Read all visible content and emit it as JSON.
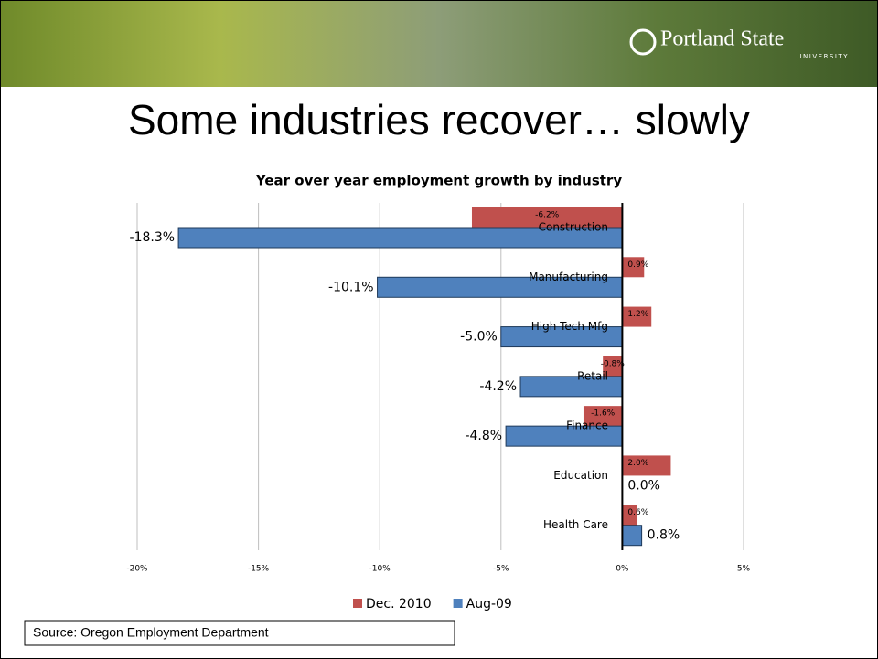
{
  "logo": {
    "name": "Portland State",
    "sub": "UNIVERSITY"
  },
  "slide_title": "Some industries recover… slowly",
  "source": "Source: Oregon Employment Department",
  "chart_data": {
    "type": "hbar",
    "title": "Year over year employment growth by industry",
    "categories": [
      "Construction",
      "Manufacturing",
      "High Tech Mfg",
      "Retail",
      "Finance",
      "Education",
      "Health Care"
    ],
    "series": [
      {
        "name": "Dec. 2010",
        "color": "#c0504d",
        "values": [
          -6.2,
          0.9,
          1.2,
          -0.8,
          -1.6,
          2.0,
          0.6
        ],
        "value_labels": [
          "-6.2%",
          "0.9%",
          "1.2%",
          "-0.8%",
          "-1.6%",
          "2.0%",
          "0.6%"
        ]
      },
      {
        "name": "Aug-09",
        "color": "#4f81bd",
        "values": [
          -18.3,
          -10.1,
          -5.0,
          -4.2,
          -4.8,
          0.0,
          0.8
        ],
        "value_labels": [
          "-18.3%",
          "-10.1%",
          "-5.0%",
          "-4.2%",
          "-4.8%",
          "0.0%",
          "0.8%"
        ]
      }
    ],
    "xlim": [
      -20,
      5
    ],
    "xticks": [
      {
        "value": -20,
        "label": "-20%"
      },
      {
        "value": -15,
        "label": "-15%"
      },
      {
        "value": -10,
        "label": "-10%"
      },
      {
        "value": -5,
        "label": "-5%"
      },
      {
        "value": 0,
        "label": "0%"
      },
      {
        "value": 5,
        "label": "5%"
      }
    ],
    "grid": true,
    "legend": "bottom"
  }
}
